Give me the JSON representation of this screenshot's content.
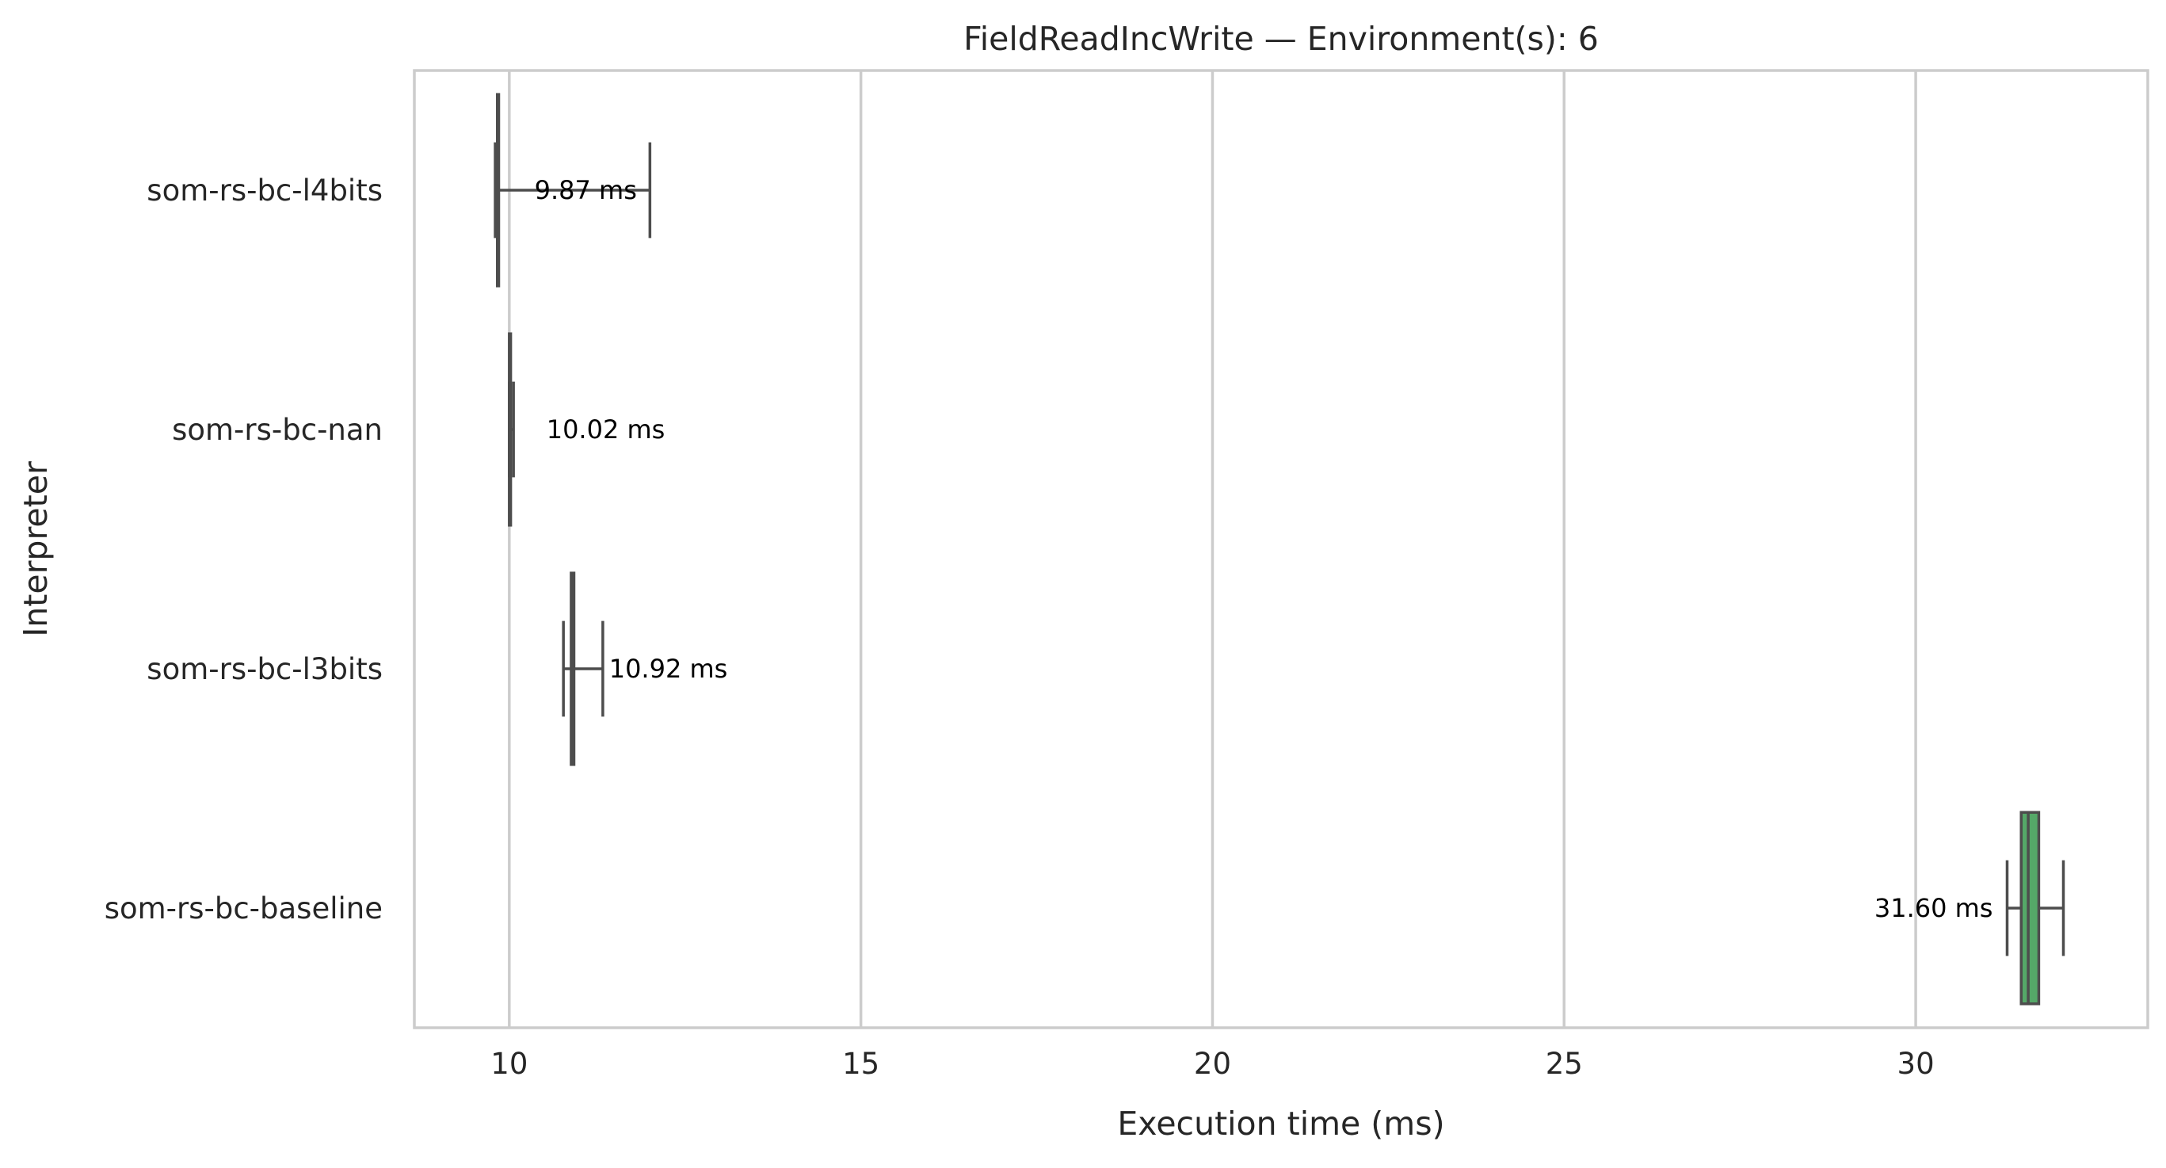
{
  "chart_data": {
    "type": "boxplot",
    "orientation": "horizontal",
    "title": "FieldReadIncWrite — Environment(s): 6",
    "xlabel": "Execution time (ms)",
    "ylabel": "Interpreter",
    "xlim": [
      8.65,
      33.3
    ],
    "xticks": [
      10,
      15,
      20,
      25,
      30
    ],
    "grid": "vertical",
    "legend": "none",
    "categories": [
      "som-rs-bc-l4bits",
      "som-rs-bc-nan",
      "som-rs-bc-l3bits",
      "som-rs-bc-baseline"
    ],
    "series": [
      {
        "category": "som-rs-bc-l4bits",
        "whisker_low": 9.8,
        "q1": 9.83,
        "median": 9.84,
        "q3": 9.85,
        "whisker_high": 12.0,
        "label": "9.87 ms",
        "color": "#4c72b0"
      },
      {
        "category": "som-rs-bc-nan",
        "whisker_low": 10.0,
        "q1": 10.0,
        "median": 10.01,
        "q3": 10.02,
        "whisker_high": 10.06,
        "label": "10.02 ms",
        "color": "#dd8452"
      },
      {
        "category": "som-rs-bc-l3bits",
        "whisker_low": 10.77,
        "q1": 10.88,
        "median": 10.9,
        "q3": 10.92,
        "whisker_high": 11.33,
        "label": "10.92 ms",
        "color": "#c44e52"
      },
      {
        "category": "som-rs-bc-baseline",
        "whisker_low": 31.3,
        "q1": 31.5,
        "median": 31.6,
        "q3": 31.75,
        "whisker_high": 32.1,
        "label": "31.60 ms",
        "color": "#55a868"
      }
    ]
  }
}
